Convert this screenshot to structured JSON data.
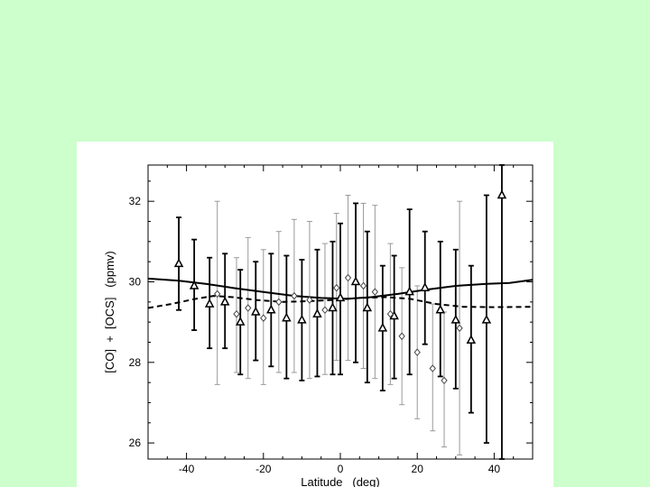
{
  "chart_data": {
    "type": "scatter",
    "title": "",
    "xlabel": "Latitude   (deg)",
    "ylabel": "[CO]  +  [OCS]   (ppmv)",
    "xlim": [
      -50,
      50
    ],
    "ylim": [
      25.6,
      32.9
    ],
    "xticks": [
      -40,
      -20,
      0,
      20,
      40
    ],
    "yticks": [
      26,
      28,
      30,
      32
    ],
    "grid": false,
    "colors": {
      "figure_bg": "#ffffff",
      "page_bg": "#ccffcc",
      "ink": "#000000",
      "light_ink": "#9a9a9a"
    },
    "series": [
      {
        "marker": "triangle",
        "points": [
          {
            "x": -42,
            "y": 30.45,
            "lo": 29.3,
            "hi": 31.6
          },
          {
            "x": -38,
            "y": 29.9,
            "lo": 28.8,
            "hi": 31.05
          },
          {
            "x": -34,
            "y": 29.45,
            "lo": 28.35,
            "hi": 30.6
          },
          {
            "x": -30,
            "y": 29.5,
            "lo": 28.35,
            "hi": 30.7
          },
          {
            "x": -26,
            "y": 29.0,
            "lo": 27.7,
            "hi": 30.3
          },
          {
            "x": -22,
            "y": 29.25,
            "lo": 28.05,
            "hi": 30.5
          },
          {
            "x": -18,
            "y": 29.3,
            "lo": 27.9,
            "hi": 30.7
          },
          {
            "x": -14,
            "y": 29.1,
            "lo": 27.6,
            "hi": 30.65
          },
          {
            "x": -10,
            "y": 29.05,
            "lo": 27.55,
            "hi": 30.55
          },
          {
            "x": -6,
            "y": 29.2,
            "lo": 27.65,
            "hi": 30.8
          },
          {
            "x": -2,
            "y": 29.35,
            "lo": 27.7,
            "hi": 31.0
          },
          {
            "x": 0,
            "y": 29.6,
            "lo": 27.7,
            "hi": 31.45
          },
          {
            "x": 4,
            "y": 30.0,
            "lo": 28.0,
            "hi": 31.95
          },
          {
            "x": 7,
            "y": 29.35,
            "lo": 27.5,
            "hi": 31.25
          },
          {
            "x": 11,
            "y": 28.85,
            "lo": 27.3,
            "hi": 30.4
          },
          {
            "x": 14,
            "y": 29.15,
            "lo": 27.6,
            "hi": 30.65
          },
          {
            "x": 18,
            "y": 29.75,
            "lo": 27.7,
            "hi": 31.8
          },
          {
            "x": 22,
            "y": 29.85,
            "lo": 28.45,
            "hi": 31.25
          },
          {
            "x": 26,
            "y": 29.3,
            "lo": 27.65,
            "hi": 31.0
          },
          {
            "x": 30,
            "y": 29.05,
            "lo": 27.35,
            "hi": 30.8
          },
          {
            "x": 34,
            "y": 28.55,
            "lo": 26.75,
            "hi": 30.4
          },
          {
            "x": 38,
            "y": 29.05,
            "lo": 26.0,
            "hi": 32.15
          },
          {
            "x": 42,
            "y": 32.15,
            "lo": 25.6,
            "hi": 32.9
          }
        ]
      },
      {
        "marker": "diamond",
        "points": [
          {
            "x": -32,
            "y": 29.7,
            "lo": 27.45,
            "hi": 32.0
          },
          {
            "x": -27,
            "y": 29.2,
            "lo": 27.75,
            "hi": 30.6
          },
          {
            "x": -24,
            "y": 29.35,
            "lo": 27.6,
            "hi": 31.1
          },
          {
            "x": -20,
            "y": 29.1,
            "lo": 27.45,
            "hi": 30.8
          },
          {
            "x": -16,
            "y": 29.5,
            "lo": 27.75,
            "hi": 31.25
          },
          {
            "x": -12,
            "y": 29.65,
            "lo": 27.75,
            "hi": 31.55
          },
          {
            "x": -8,
            "y": 29.55,
            "lo": 27.6,
            "hi": 31.5
          },
          {
            "x": -4,
            "y": 29.3,
            "lo": 27.7,
            "hi": 30.95
          },
          {
            "x": -1,
            "y": 29.85,
            "lo": 28.05,
            "hi": 31.7
          },
          {
            "x": 2,
            "y": 30.1,
            "lo": 28.05,
            "hi": 32.15
          },
          {
            "x": 6,
            "y": 29.9,
            "lo": 27.85,
            "hi": 31.95
          },
          {
            "x": 9,
            "y": 29.75,
            "lo": 27.6,
            "hi": 31.9
          },
          {
            "x": 13,
            "y": 29.2,
            "lo": 27.45,
            "hi": 30.95
          },
          {
            "x": 16,
            "y": 28.65,
            "lo": 26.95,
            "hi": 30.35
          },
          {
            "x": 20,
            "y": 28.25,
            "lo": 26.6,
            "hi": 29.9
          },
          {
            "x": 24,
            "y": 27.85,
            "lo": 26.3,
            "hi": 29.45
          },
          {
            "x": 27,
            "y": 27.55,
            "lo": 25.9,
            "hi": 29.25
          },
          {
            "x": 31,
            "y": 28.85,
            "lo": 25.7,
            "hi": 32.0
          }
        ]
      },
      {
        "line": "solid",
        "points": [
          {
            "x": -50,
            "y": 30.08
          },
          {
            "x": -42,
            "y": 30.03
          },
          {
            "x": -35,
            "y": 29.95
          },
          {
            "x": -28,
            "y": 29.85
          },
          {
            "x": -20,
            "y": 29.75
          },
          {
            "x": -12,
            "y": 29.65
          },
          {
            "x": -5,
            "y": 29.6
          },
          {
            "x": 2,
            "y": 29.58
          },
          {
            "x": 8,
            "y": 29.62
          },
          {
            "x": 15,
            "y": 29.7
          },
          {
            "x": 22,
            "y": 29.8
          },
          {
            "x": 30,
            "y": 29.9
          },
          {
            "x": 38,
            "y": 29.95
          },
          {
            "x": 44,
            "y": 29.97
          },
          {
            "x": 50,
            "y": 30.05
          }
        ]
      },
      {
        "line": "dashed",
        "points": [
          {
            "x": -50,
            "y": 29.35
          },
          {
            "x": -44,
            "y": 29.45
          },
          {
            "x": -38,
            "y": 29.57
          },
          {
            "x": -33,
            "y": 29.65
          },
          {
            "x": -28,
            "y": 29.62
          },
          {
            "x": -22,
            "y": 29.55
          },
          {
            "x": -15,
            "y": 29.5
          },
          {
            "x": -8,
            "y": 29.52
          },
          {
            "x": -2,
            "y": 29.55
          },
          {
            "x": 5,
            "y": 29.6
          },
          {
            "x": 12,
            "y": 29.62
          },
          {
            "x": 18,
            "y": 29.58
          },
          {
            "x": 25,
            "y": 29.45
          },
          {
            "x": 32,
            "y": 29.38
          },
          {
            "x": 40,
            "y": 29.37
          },
          {
            "x": 50,
            "y": 29.38
          }
        ]
      }
    ]
  }
}
